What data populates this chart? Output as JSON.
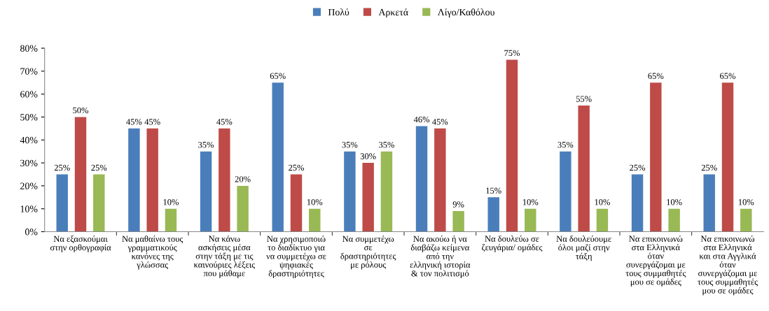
{
  "chart_data": {
    "type": "bar",
    "categories": [
      "Να εξασκούμαι\nστην ορθογραφία",
      "Να μαθαίνω τους\nγραμματικούς\nκανόνες της\nγλώσσας",
      "Να κάνω\nασκήσεις μέσα\nστην τάξη με τις\nκαινούριες λέξεις\nπου μάθαμε",
      "Να χρησιμοποιώ\nτο διαδίκτυο για\nνα συμμετέχω σε\nψηφιακές\nδραστηριότητες",
      "Να συμμετέχω\nσε\nδραστηριότητες\nμε ρόλους",
      "Να ακούω ή να\nδιαβάζω κείμενα\nαπό την\nελληνική ιστορία\n& τον πολιτισμό",
      "Να δουλεύω σε\nζευγάρια/ ομάδες",
      "Να δουλεύουμε\nόλοι μαζί στην\nτάξη",
      "Να επικοινωνώ\nστα Ελληνικά\nόταν\nσυνεργάζομαι με\nτους συμμαθητές\nμου σε ομάδες",
      "Να επικοινωνώ\nστα Ελληνικά\nκαι στα Αγγλικά\nόταν\nσυνεργάζομαι με\nτους συμμαθητές\nμου σε ομάδες"
    ],
    "series": [
      {
        "name": "Πολύ",
        "color": "#4a7ebb",
        "values": [
          25,
          45,
          35,
          65,
          35,
          46,
          15,
          35,
          25,
          25
        ],
        "value_labels": [
          "25%",
          "45%",
          "35%",
          "65%",
          "35%",
          "46%",
          "15%",
          "35%",
          "25%",
          "25%"
        ]
      },
      {
        "name": "Αρκετά",
        "color": "#be4b48",
        "values": [
          50,
          45,
          45,
          25,
          30,
          45,
          75,
          55,
          65,
          65
        ],
        "value_labels": [
          "50%",
          "45%",
          "45%",
          "25%",
          "30%",
          "45%",
          "75%",
          "55%",
          "65%",
          "65%"
        ]
      },
      {
        "name": "Λίγο/Καθόλου",
        "color": "#98b954",
        "values": [
          25,
          10,
          20,
          10,
          35,
          9,
          10,
          10,
          10,
          10
        ],
        "value_labels": [
          "25%",
          "10%",
          "20%",
          "10%",
          "35%",
          "9%",
          "10%",
          "10%",
          "10%",
          "10%"
        ]
      }
    ],
    "ylim": [
      0,
      80
    ],
    "yticks": [
      {
        "value": 0,
        "label": "0%"
      },
      {
        "value": 10,
        "label": "10%"
      },
      {
        "value": 20,
        "label": "20%"
      },
      {
        "value": 30,
        "label": "30%"
      },
      {
        "value": 40,
        "label": "40%"
      },
      {
        "value": 50,
        "label": "50%"
      },
      {
        "value": 60,
        "label": "60%"
      },
      {
        "value": 70,
        "label": "70%"
      },
      {
        "value": 80,
        "label": "80%"
      }
    ],
    "legend": "top"
  }
}
